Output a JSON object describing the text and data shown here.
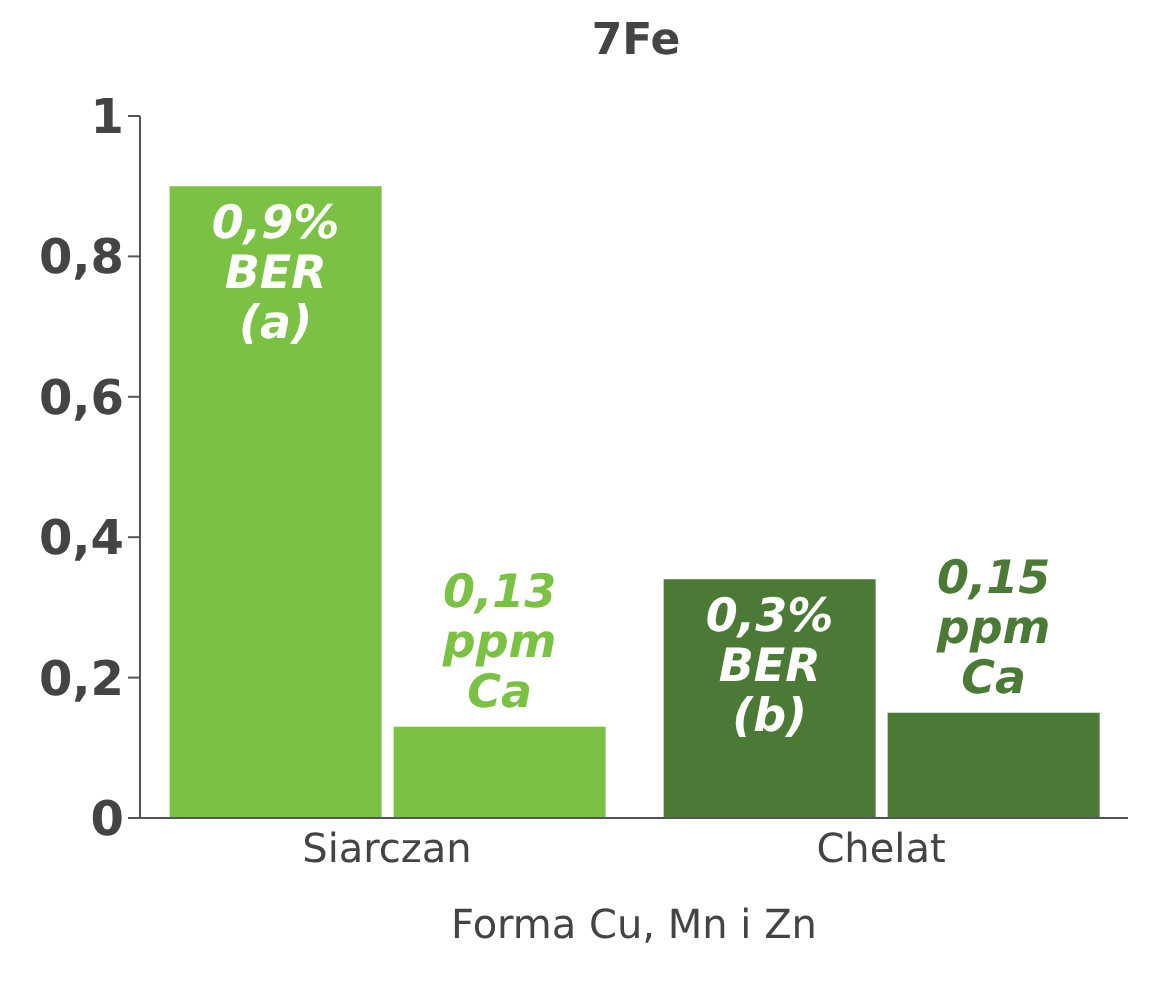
{
  "chart_data": {
    "type": "bar",
    "title": "7Fe",
    "xlabel": "Forma Cu, Mn i Zn",
    "categories": [
      "Siarczan",
      "Chelat"
    ],
    "series": [
      {
        "colors": [
          "#7bc143",
          "#4a7a35"
        ],
        "values": [
          0.9,
          0.34
        ],
        "value_labels": [
          "0,9%\nBER\n(a)",
          "0,3%\nBER\n(b)"
        ]
      },
      {
        "colors": [
          "#7bc143",
          "#4a7a35"
        ],
        "values": [
          0.13,
          0.15
        ],
        "value_labels": [
          "0,13\nppm\nCa",
          "0,15\nppm\nCa"
        ]
      }
    ],
    "ylim": [
      0,
      1
    ],
    "yticks": [
      0,
      {
        "value": 0.2,
        "label": "0,2"
      },
      {
        "value": 0.4,
        "label": "0,4"
      },
      {
        "value": 0.6,
        "label": "0,6"
      },
      {
        "value": 0.8,
        "label": "0,8"
      },
      1
    ],
    "grid": false,
    "legend": false
  }
}
